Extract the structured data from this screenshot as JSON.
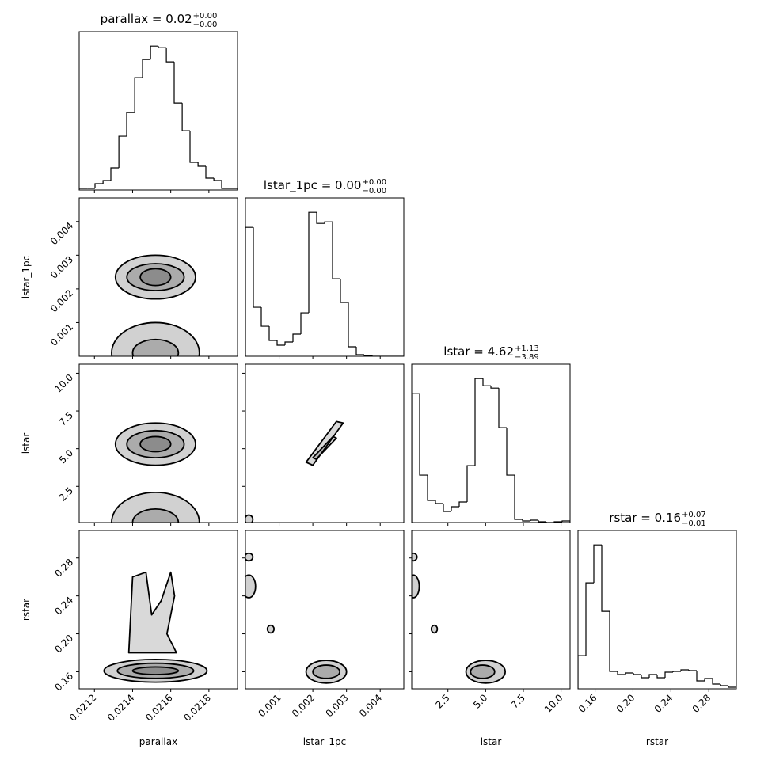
{
  "chart_data": {
    "type": "corner",
    "parameters": [
      {
        "label": "parallax",
        "title": "parallax = 0.02",
        "upper": "+0.00",
        "lower": "−0.00",
        "lim": [
          0.02112,
          0.02195
        ],
        "ticks": [
          0.0212,
          0.0214,
          0.0216,
          0.0218
        ],
        "hist": {
          "bins": [
            0.02112,
            0.021162,
            0.021203,
            0.021245,
            0.021286,
            0.021328,
            0.021369,
            0.021411,
            0.021452,
            0.021494,
            0.021535,
            0.021577,
            0.021618,
            0.02166,
            0.021701,
            0.021743,
            0.021784,
            0.021826,
            0.021867,
            0.021909,
            0.02195
          ],
          "counts": [
            2,
            2,
            8,
            12,
            28,
            68,
            98,
            142,
            165,
            182,
            180,
            162,
            110,
            75,
            35,
            30,
            15,
            12,
            2,
            2
          ]
        },
        "pairs": []
      },
      {
        "label": "lstar_1pc",
        "title": "lstar_1pc = 0.00",
        "upper": "+0.00",
        "lower": "−0.00",
        "lim": [
          0,
          0.0047
        ],
        "ticks": [
          0.001,
          0.002,
          0.003,
          0.004
        ],
        "hist": {
          "bins": [
            0,
            0.000235,
            0.00047,
            0.000705,
            0.00094,
            0.001175,
            0.00141,
            0.001645,
            0.00188,
            0.002115,
            0.00235,
            0.002585,
            0.00282,
            0.003055,
            0.00329,
            0.003525,
            0.00376,
            0.003995,
            0.00423,
            0.004465,
            0.0047
          ],
          "counts": [
            163,
            62,
            38,
            20,
            14,
            18,
            28,
            55,
            182,
            168,
            170,
            98,
            68,
            12,
            2,
            1,
            0,
            0,
            0,
            0
          ]
        },
        "pairs": [
          {
            "contours": [
              {
                "x": 0.02152,
                "y": 0.00235,
                "dx": 0.00021,
                "dy": 0.00065
              },
              {
                "x": 0.02152,
                "y": 0.00235,
                "dx": 0.00015,
                "dy": 0.0004
              },
              {
                "x": 0.02152,
                "y": 0.00235,
                "dx": 8e-05,
                "dy": 0.00025
              },
              {
                "x": 0.02152,
                "y": 0.0001,
                "dx": 0.00023,
                "dy": 0.0009
              },
              {
                "x": 0.02152,
                "y": 0.0001,
                "dx": 0.00012,
                "dy": 0.0004
              }
            ]
          }
        ]
      },
      {
        "label": "lstar",
        "title": "lstar = 4.62",
        "upper": "+1.13",
        "lower": "−3.89",
        "lim": [
          0.1,
          10.6
        ],
        "ticks": [
          2.5,
          {
            "value": 5,
            "label": "5.0"
          },
          7.5,
          {
            "value": 10,
            "label": "10.0"
          }
        ],
        "hist": {
          "bins": [
            0.1,
            0.625,
            1.15,
            1.675,
            2.2,
            2.725,
            3.25,
            3.775,
            4.3,
            4.825,
            5.35,
            5.875,
            6.4,
            6.925,
            7.45,
            7.975,
            8.5,
            9.025,
            9.55,
            10.075,
            10.6
          ],
          "counts": [
            163,
            60,
            28,
            24,
            14,
            20,
            26,
            72,
            182,
            173,
            170,
            120,
            60,
            4,
            2,
            3,
            1,
            0,
            1,
            2
          ]
        },
        "pairs": [
          {
            "contours": [
              {
                "x": 0.02152,
                "y": 5.3,
                "dx": 0.00021,
                "dy": 1.4
              },
              {
                "x": 0.02152,
                "y": 5.3,
                "dx": 0.00015,
                "dy": 0.9
              },
              {
                "x": 0.02152,
                "y": 5.3,
                "dx": 8e-05,
                "dy": 0.5
              },
              {
                "x": 0.02152,
                "y": 0.1,
                "dx": 0.00023,
                "dy": 2.0
              },
              {
                "x": 0.02152,
                "y": 0.1,
                "dx": 0.00012,
                "dy": 0.9
              }
            ]
          },
          {
            "contours": [
              {
                "x": [
                  0.0018,
                  0.0027,
                  0.0029,
                  0.002
                ],
                "y": [
                  4.1,
                  6.8,
                  6.7,
                  3.9
                ]
              },
              {
                "x": [
                  0.002,
                  0.0026,
                  0.0027,
                  0.0021
                ],
                "y": [
                  4.4,
                  5.8,
                  5.7,
                  4.3
                ]
              },
              {
                "x": 0.0001,
                "y": 0.3,
                "dx": 0.00012,
                "dy": 0.3
              }
            ]
          }
        ]
      },
      {
        "label": "rstar",
        "title": "rstar = 0.16",
        "upper": "+0.07",
        "lower": "−0.01",
        "lim": [
          0.142,
          0.309
        ],
        "ticks": [
          0.16,
          {
            "value": 0.2,
            "label": "0.20"
          },
          0.24,
          0.28
        ],
        "hist": {
          "bins": [
            0.142,
            0.15035,
            0.1587,
            0.16705,
            0.1754,
            0.18375,
            0.1921,
            0.20045,
            0.2088,
            0.21715,
            0.2255,
            0.23385,
            0.2422,
            0.25055,
            0.2589,
            0.26725,
            0.2756,
            0.28395,
            0.2923,
            0.30065,
            0.309
          ],
          "counts": [
            42,
            134,
            182,
            98,
            22,
            18,
            20,
            18,
            14,
            18,
            14,
            21,
            22,
            24,
            23,
            10,
            13,
            6,
            4,
            2
          ]
        },
        "pairs": [
          {
            "contours": [
              {
                "x": [
                  0.02138,
                  0.0214,
                  0.02147,
                  0.0215,
                  0.02155,
                  0.0216,
                  0.02162,
                  0.02158,
                  0.02163
                ],
                "y": [
                  0.18,
                  0.26,
                  0.265,
                  0.22,
                  0.235,
                  0.265,
                  0.24,
                  0.2,
                  0.18
                ]
              },
              {
                "x": 0.02152,
                "y": 0.161,
                "dx": 0.00027,
                "dy": 0.012
              },
              {
                "x": 0.02152,
                "y": 0.161,
                "dx": 0.0002,
                "dy": 0.008
              },
              {
                "x": 0.02152,
                "y": 0.161,
                "dx": 0.00012,
                "dy": 0.004
              }
            ]
          },
          {
            "contours": [
              {
                "x": 0.0024,
                "y": 0.16,
                "dx": 0.0006,
                "dy": 0.012
              },
              {
                "x": 0.0024,
                "y": 0.16,
                "dx": 0.0004,
                "dy": 0.007
              },
              {
                "x": 0.0001,
                "y": 0.25,
                "dx": 0.0002,
                "dy": 0.012
              },
              {
                "x": 0.0001,
                "y": 0.281,
                "dx": 0.00012,
                "dy": 0.004
              },
              {
                "x": 0.00075,
                "y": 0.205,
                "dx": 0.0001,
                "dy": 0.004
              }
            ]
          },
          {
            "contours": [
              {
                "x": 5.0,
                "y": 0.16,
                "dx": 1.3,
                "dy": 0.012
              },
              {
                "x": 4.8,
                "y": 0.16,
                "dx": 0.8,
                "dy": 0.007
              },
              {
                "x": 0.2,
                "y": 0.25,
                "dx": 0.4,
                "dy": 0.012
              },
              {
                "x": 0.2,
                "y": 0.281,
                "dx": 0.25,
                "dy": 0.004
              },
              {
                "x": 1.6,
                "y": 0.205,
                "dx": 0.2,
                "dy": 0.004
              }
            ]
          }
        ]
      }
    ]
  }
}
